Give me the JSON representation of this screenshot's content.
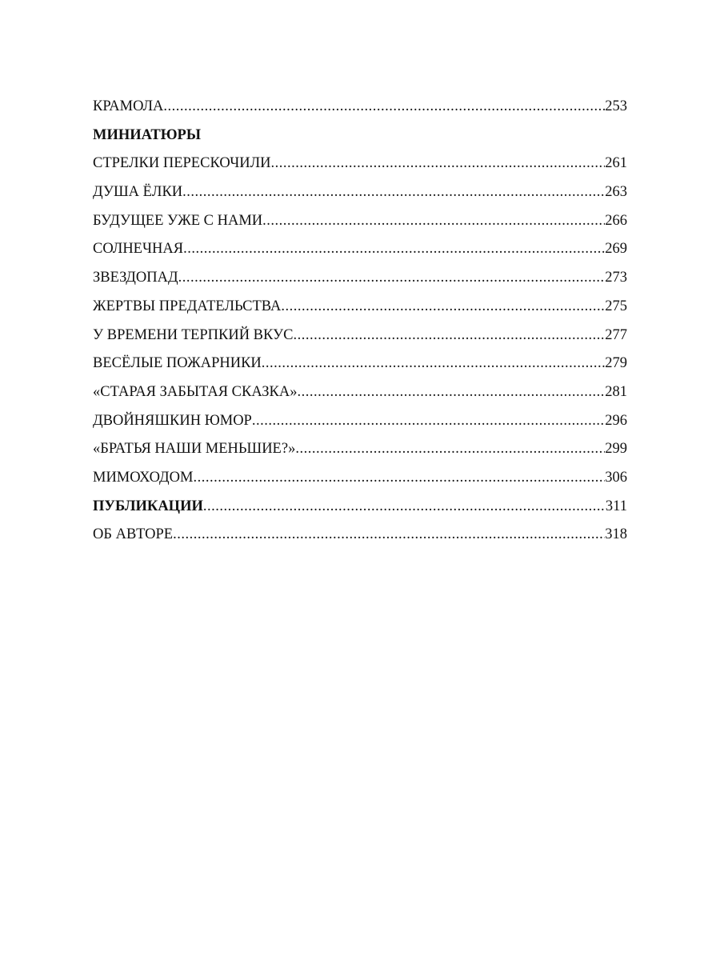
{
  "toc": [
    {
      "title": "КРАМОЛА",
      "page": "253",
      "bold": false
    },
    {
      "title": "МИНИАТЮРЫ",
      "page": null,
      "bold": true
    },
    {
      "title": "СТРЕЛКИ ПЕРЕСКОЧИЛИ",
      "page": "261",
      "bold": false
    },
    {
      "title": "ДУША ЁЛКИ",
      "page": "263",
      "bold": false
    },
    {
      "title": "БУДУЩЕЕ УЖЕ С НАМИ",
      "page": "266",
      "bold": false
    },
    {
      "title": "СОЛНЕЧНАЯ ",
      "page": "269",
      "bold": false
    },
    {
      "title": "ЗВЕЗДОПАД",
      "page": "273",
      "bold": false
    },
    {
      "title": "ЖЕРТВЫ ПРЕДАТЕЛЬСТВА ",
      "page": "275",
      "bold": false
    },
    {
      "title": "У ВРЕМЕНИ ТЕРПКИЙ ВКУС",
      "page": "277",
      "bold": false
    },
    {
      "title": "ВЕСЁЛЫЕ ПОЖАРНИКИ ",
      "page": "279",
      "bold": false
    },
    {
      "title": "«СТАРАЯ ЗАБЫТАЯ СКАЗКА»",
      "page": "281",
      "bold": false
    },
    {
      "title": "ДВОЙНЯШКИН ЮМОР ",
      "page": "296",
      "bold": false
    },
    {
      "title": "«БРАТЬЯ НАШИ МЕНЬШИЕ?» ",
      "page": "299",
      "bold": false
    },
    {
      "title": "МИМОХОДОМ ",
      "page": "306",
      "bold": false
    },
    {
      "title": "ПУБЛИКАЦИИ",
      "page": "311",
      "bold": true
    },
    {
      "title": "ОБ АВТОРЕ",
      "page": "318",
      "bold": false
    }
  ]
}
